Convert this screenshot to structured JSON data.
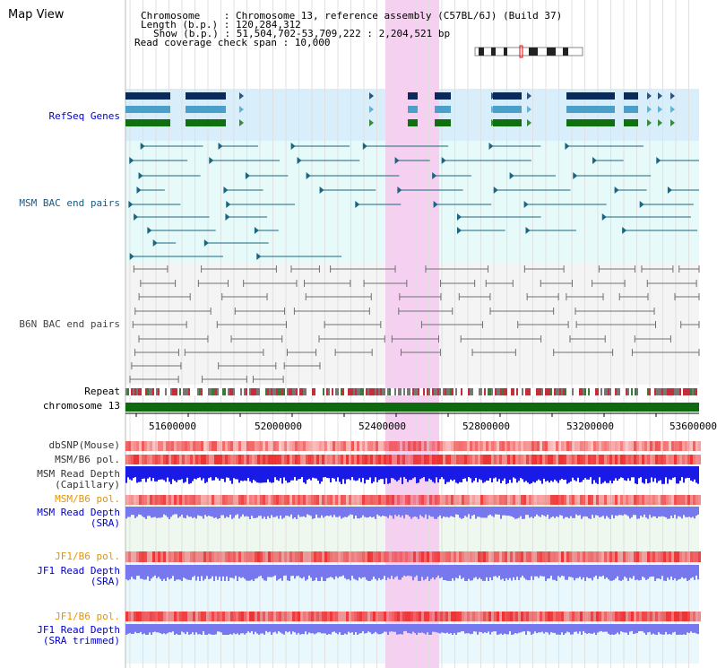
{
  "header": {
    "title": "Map View",
    "info_lines": [
      "Chromosome    : Chromosome 13, reference assembly (C57BL/6J) (Build 37)",
      "Length (b.p.) : 120,284,312",
      "Show (b.p.) : 51,504,702-53,709,222 : 2,204,521 bp",
      "Read coverage check span : 10,000"
    ]
  },
  "tracks": {
    "refseq_label": "RefSeq Genes",
    "msm_bac_label": "MSM BAC end pairs",
    "b6n_bac_label": "B6N BAC end pairs",
    "repeat_label": "Repeat",
    "chromosome_label": "chromosome 13",
    "dbsnp_label": "dbSNP(Mouse)",
    "msm_b6_pol_label": "MSM/B6 pol.",
    "msm_depth_cap_label_1": "MSM Read Depth",
    "msm_depth_cap_label_2": "(Capillary)",
    "msm_b6_pol2_label": "MSM/B6 pol.",
    "msm_depth_sra_label_1": "MSM Read Depth",
    "msm_depth_sra_label_2": "(SRA)",
    "jf1_pol_label": "JF1/B6 pol.",
    "jf1_depth_label_1": "JF1 Read Depth",
    "jf1_depth_label_2": "(SRA)",
    "jf1_pol2_label": "JF1/B6 pol.",
    "jf1_trim_label_1": "JF1 Read Depth",
    "jf1_trim_label_2": "(SRA trimmed)"
  },
  "axis": {
    "ticks": [
      "51600000",
      "52000000",
      "52400000",
      "52800000",
      "53200000",
      "53600000"
    ]
  },
  "colors": {
    "refseq_bg": "#d8eefa",
    "teal_bg": "#e6fafa",
    "gray_bg": "#f4f4f4",
    "highlight": "#f6d0f0",
    "gene_dark": "#0a2a5c",
    "gene_mid": "#4aa0c8",
    "gene_green": "#107010",
    "msm_pair": "#1a6680",
    "b6n_pair": "#707070",
    "chromosome": "#0f6a0f",
    "depth_blue": "#1a1ae6",
    "depth_light": "#7777ee",
    "pol_red": "#ee3333",
    "label_blue": "#0000cc",
    "label_orange": "#e69500"
  }
}
